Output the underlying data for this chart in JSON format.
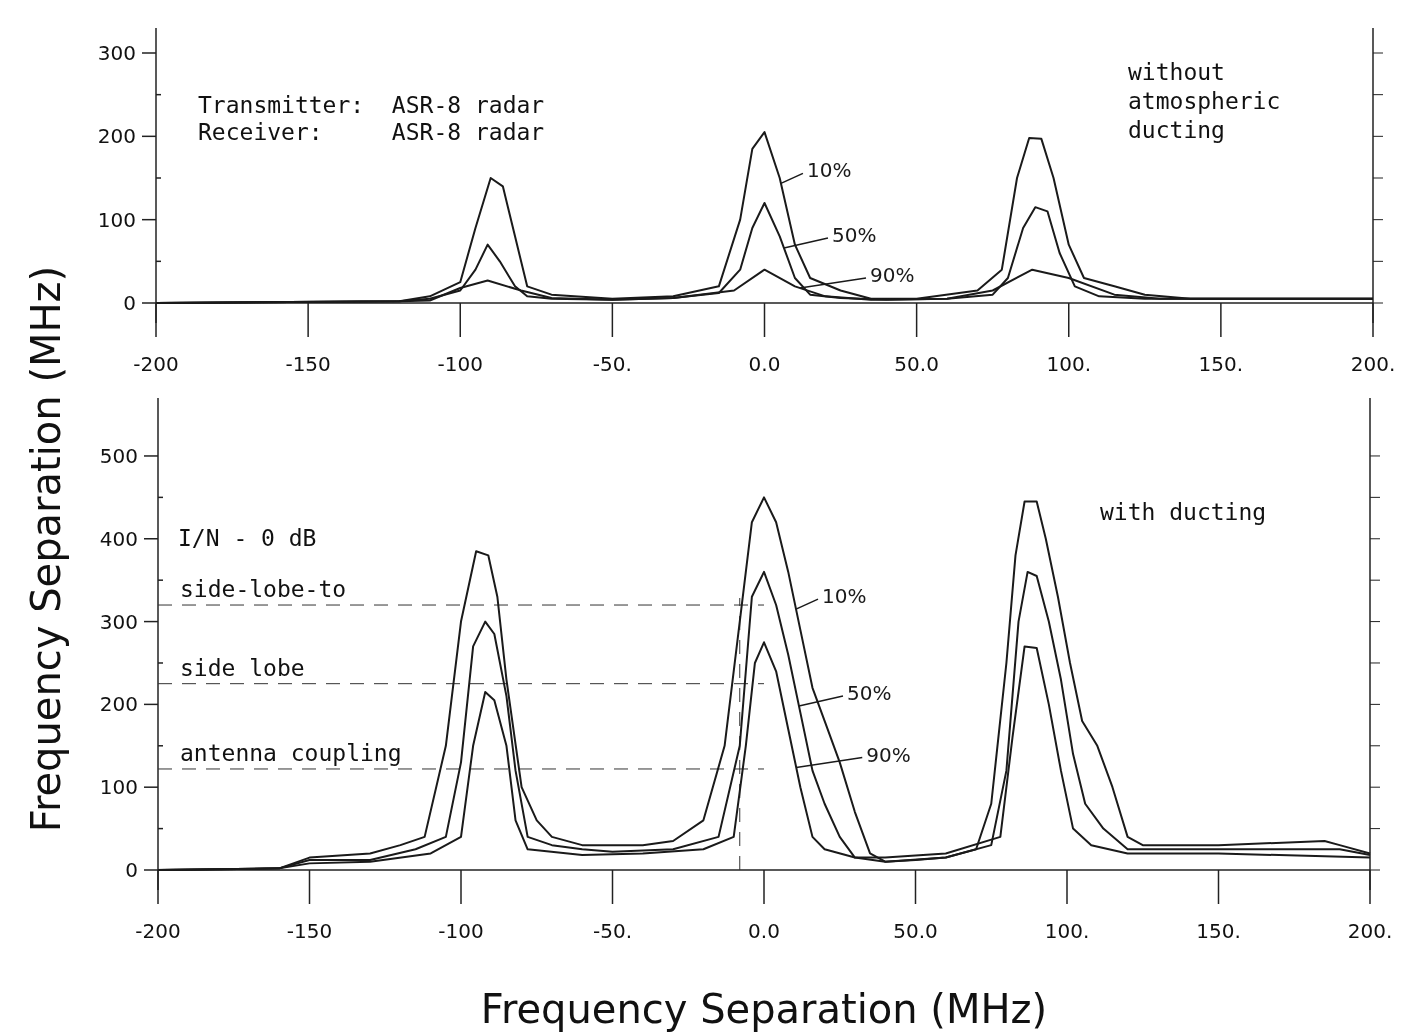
{
  "chart_data": [
    {
      "type": "line",
      "ylabel": "Frequency Separation (MHz)",
      "xlim": [
        -200,
        200
      ],
      "ylim": [
        0,
        330
      ],
      "xticks": [
        {
          "value": -200,
          "label": "-200"
        },
        {
          "value": -150,
          "label": "-150"
        },
        {
          "value": -100,
          "label": "-100"
        },
        {
          "value": -50,
          "label": "-50."
        },
        {
          "value": 0,
          "label": "0.0"
        },
        {
          "value": 50,
          "label": "50.0"
        },
        {
          "value": 100,
          "label": "100."
        },
        {
          "value": 150,
          "label": "150."
        },
        {
          "value": 200,
          "label": "200."
        }
      ],
      "yticks": [
        0,
        {
          "value": 50,
          "label": null
        },
        100,
        {
          "value": 150,
          "label": null
        },
        200,
        {
          "value": 250,
          "label": null
        },
        300
      ],
      "grid": false,
      "legend": "bottom right",
      "marker": "none",
      "line_style": "solid",
      "annotations": [
        "Transmitter:  ASR-8 radar",
        "Receiver:     ASR-8 radar",
        "without atmospheric ducting"
      ],
      "series": [
        {
          "name": "10%",
          "color": "#1a1a1a",
          "x": [
            -200,
            -120,
            -110,
            -100,
            -95,
            -90,
            -86,
            -82,
            -78,
            -70,
            -50,
            -30,
            -15,
            -8,
            -4,
            0,
            5,
            10,
            15,
            25,
            35,
            50,
            70,
            78,
            83,
            87,
            91,
            95,
            100,
            105,
            115,
            125,
            140,
            200
          ],
          "values": [
            0,
            2,
            8,
            25,
            90,
            150,
            140,
            80,
            20,
            10,
            5,
            8,
            20,
            100,
            185,
            205,
            150,
            70,
            30,
            15,
            5,
            5,
            15,
            40,
            150,
            198,
            197,
            150,
            70,
            30,
            20,
            10,
            5,
            5
          ]
        },
        {
          "name": "50%",
          "color": "#1a1a1a",
          "x": [
            -200,
            -120,
            -110,
            -100,
            -95,
            -91,
            -87,
            -82,
            -78,
            -70,
            -50,
            -30,
            -15,
            -8,
            -4,
            0,
            5,
            10,
            15,
            25,
            40,
            60,
            75,
            80,
            85,
            89,
            93,
            97,
            102,
            110,
            125,
            200
          ],
          "values": [
            0,
            2,
            5,
            15,
            40,
            70,
            50,
            20,
            8,
            5,
            4,
            6,
            12,
            40,
            90,
            120,
            80,
            30,
            10,
            6,
            4,
            5,
            10,
            30,
            90,
            115,
            110,
            60,
            20,
            8,
            5,
            5
          ]
        },
        {
          "name": "90%",
          "color": "#1a1a1a",
          "x": [
            -200,
            -120,
            -110,
            -100,
            -91,
            -80,
            -70,
            -50,
            -30,
            -10,
            0,
            10,
            20,
            35,
            60,
            75,
            88,
            100,
            115,
            130,
            200
          ],
          "values": [
            0,
            2,
            3,
            18,
            27,
            15,
            6,
            4,
            6,
            15,
            40,
            20,
            8,
            4,
            5,
            15,
            40,
            30,
            10,
            5,
            5
          ]
        }
      ]
    },
    {
      "type": "line",
      "xlabel": "Frequency Separation (MHz)",
      "xlim": [
        -200,
        200
      ],
      "ylim": [
        0,
        570
      ],
      "xticks": [
        {
          "value": -200,
          "label": "-200"
        },
        {
          "value": -150,
          "label": "-150"
        },
        {
          "value": -100,
          "label": "-100"
        },
        {
          "value": -50,
          "label": "-50."
        },
        {
          "value": 0,
          "label": "0.0"
        },
        {
          "value": 50,
          "label": "50.0"
        },
        {
          "value": 100,
          "label": "100."
        },
        {
          "value": 150,
          "label": "150."
        },
        {
          "value": 200,
          "label": "200."
        }
      ],
      "yticks": [
        0,
        {
          "value": 50,
          "label": null
        },
        100,
        {
          "value": 150,
          "label": null
        },
        200,
        {
          "value": 250,
          "label": null
        },
        300,
        {
          "value": 350,
          "label": null
        },
        400,
        {
          "value": 450,
          "label": null
        },
        500
      ],
      "grid": false,
      "legend": "bottom right",
      "marker": "none",
      "line_style": "solid",
      "annotations": [
        "I/N - 0 dB",
        "with ducting"
      ],
      "ref_lines": [
        {
          "axis": "y",
          "value": 320,
          "label": "side-lobe-to",
          "line_style": "dashed"
        },
        {
          "axis": "y",
          "value": 225,
          "label": "side lobe",
          "line_style": "dashed"
        },
        {
          "axis": "y",
          "value": 122,
          "label": "antenna coupling",
          "line_style": "dashed"
        },
        {
          "axis": "x",
          "value": -8,
          "line_style": "dashed"
        }
      ],
      "series": [
        {
          "name": "10%",
          "color": "#1a1a1a",
          "x": [
            -200,
            -160,
            -150,
            -130,
            -120,
            -112,
            -105,
            -100,
            -95,
            -91,
            -88,
            -85,
            -80,
            -75,
            -70,
            -60,
            -50,
            -40,
            -30,
            -20,
            -13,
            -8,
            -4,
            0,
            4,
            8,
            12,
            16,
            20,
            25,
            30,
            35,
            40,
            50,
            60,
            70,
            75,
            80,
            83,
            86,
            90,
            93,
            97,
            101,
            105,
            110,
            115,
            120,
            125,
            150,
            185,
            190,
            200
          ],
          "values": [
            0,
            2,
            15,
            20,
            30,
            40,
            150,
            300,
            385,
            380,
            330,
            230,
            100,
            60,
            40,
            30,
            30,
            30,
            35,
            60,
            150,
            300,
            420,
            450,
            420,
            360,
            290,
            220,
            180,
            130,
            70,
            20,
            10,
            12,
            15,
            25,
            80,
            250,
            380,
            445,
            445,
            400,
            330,
            250,
            180,
            150,
            100,
            40,
            30,
            30,
            35,
            30,
            20
          ]
        },
        {
          "name": "50%",
          "color": "#1a1a1a",
          "x": [
            -200,
            -160,
            -150,
            -130,
            -115,
            -105,
            -100,
            -96,
            -92,
            -89,
            -85,
            -82,
            -78,
            -70,
            -60,
            -50,
            -30,
            -15,
            -8,
            -4,
            0,
            4,
            8,
            12,
            16,
            20,
            25,
            30,
            40,
            60,
            75,
            80,
            84,
            87,
            90,
            94,
            98,
            102,
            106,
            112,
            120,
            150,
            190,
            200
          ],
          "values": [
            0,
            2,
            12,
            12,
            25,
            40,
            130,
            270,
            300,
            285,
            210,
            120,
            40,
            30,
            25,
            22,
            25,
            40,
            150,
            330,
            360,
            320,
            260,
            190,
            120,
            80,
            40,
            15,
            10,
            15,
            30,
            120,
            300,
            360,
            355,
            300,
            230,
            140,
            80,
            50,
            25,
            25,
            25,
            18
          ]
        },
        {
          "name": "90%",
          "color": "#1a1a1a",
          "x": [
            -200,
            -160,
            -150,
            -130,
            -110,
            -100,
            -96,
            -92,
            -89,
            -85,
            -82,
            -78,
            -60,
            -40,
            -20,
            -10,
            -6,
            -3,
            0,
            4,
            8,
            12,
            16,
            20,
            30,
            40,
            60,
            78,
            82,
            86,
            90,
            94,
            98,
            102,
            108,
            120,
            150,
            200
          ],
          "values": [
            0,
            2,
            8,
            10,
            20,
            40,
            150,
            215,
            205,
            150,
            60,
            25,
            18,
            20,
            25,
            40,
            150,
            250,
            275,
            240,
            170,
            100,
            40,
            25,
            15,
            15,
            20,
            40,
            160,
            270,
            268,
            200,
            120,
            50,
            30,
            20,
            20,
            15
          ]
        }
      ]
    }
  ]
}
